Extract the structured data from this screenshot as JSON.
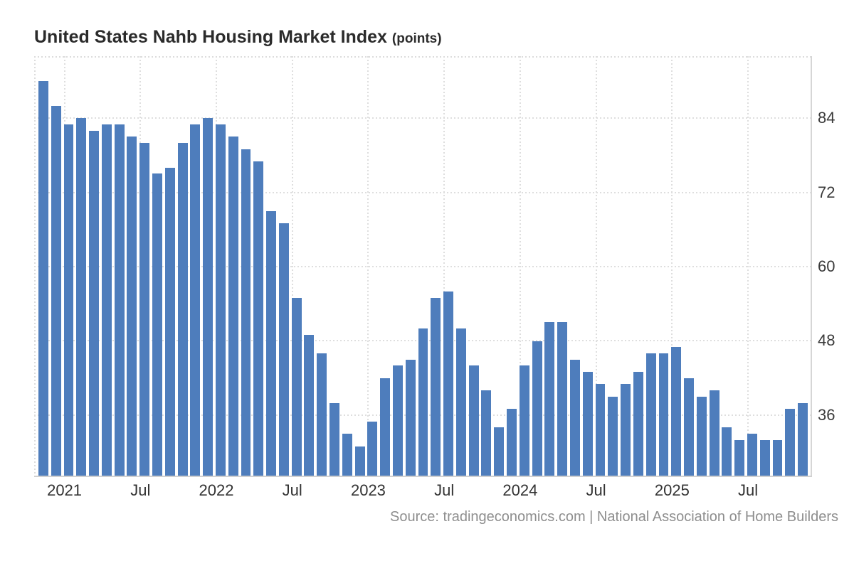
{
  "header": {
    "title": "United States Nahb Housing Market Index",
    "units_suffix": "(points)"
  },
  "footer": {
    "source": "Source: tradingeconomics.com | National Association of Home Builders"
  },
  "chart_data": {
    "type": "bar",
    "title": "United States Nahb Housing Market Index",
    "ylabel": "points",
    "bar_color": "#4e7dbc",
    "grid": "dotted",
    "legend": false,
    "ylim": [
      26,
      94
    ],
    "yticks": [
      36,
      48,
      60,
      72,
      84
    ],
    "x": [
      "2020-11",
      "2020-12",
      "2021-01",
      "2021-02",
      "2021-03",
      "2021-04",
      "2021-05",
      "2021-06",
      "2021-07",
      "2021-08",
      "2021-09",
      "2021-10",
      "2021-11",
      "2021-12",
      "2022-01",
      "2022-02",
      "2022-03",
      "2022-04",
      "2022-05",
      "2022-06",
      "2022-07",
      "2022-08",
      "2022-09",
      "2022-10",
      "2022-11",
      "2022-12",
      "2023-01",
      "2023-02",
      "2023-03",
      "2023-04",
      "2023-05",
      "2023-06",
      "2023-07",
      "2023-08",
      "2023-09",
      "2023-10",
      "2023-11",
      "2023-12",
      "2024-01",
      "2024-02",
      "2024-03",
      "2024-04",
      "2024-05",
      "2024-06",
      "2024-07",
      "2024-08",
      "2024-09",
      "2024-10",
      "2024-11",
      "2024-12",
      "2025-01",
      "2025-02",
      "2025-03",
      "2025-04",
      "2025-05",
      "2025-06",
      "2025-07",
      "2025-08",
      "2025-09",
      "2025-10",
      "2025-11"
    ],
    "values": [
      90,
      86,
      83,
      84,
      82,
      83,
      83,
      81,
      80,
      75,
      76,
      80,
      83,
      84,
      83,
      81,
      79,
      77,
      69,
      67,
      55,
      49,
      46,
      38,
      33,
      31,
      35,
      42,
      44,
      45,
      50,
      55,
      56,
      50,
      44,
      40,
      34,
      37,
      44,
      48,
      51,
      51,
      45,
      43,
      41,
      39,
      41,
      43,
      46,
      46,
      47,
      42,
      39,
      40,
      34,
      32,
      33,
      32,
      32,
      37,
      38
    ],
    "xticks": [
      {
        "label": "2021",
        "month_index": 2
      },
      {
        "label": "Jul",
        "month_index": 8
      },
      {
        "label": "2022",
        "month_index": 14
      },
      {
        "label": "Jul",
        "month_index": 20
      },
      {
        "label": "2023",
        "month_index": 26
      },
      {
        "label": "Jul",
        "month_index": 32
      },
      {
        "label": "2024",
        "month_index": 38
      },
      {
        "label": "Jul",
        "month_index": 44
      },
      {
        "label": "2025",
        "month_index": 50
      },
      {
        "label": "Jul",
        "month_index": 56
      }
    ]
  }
}
